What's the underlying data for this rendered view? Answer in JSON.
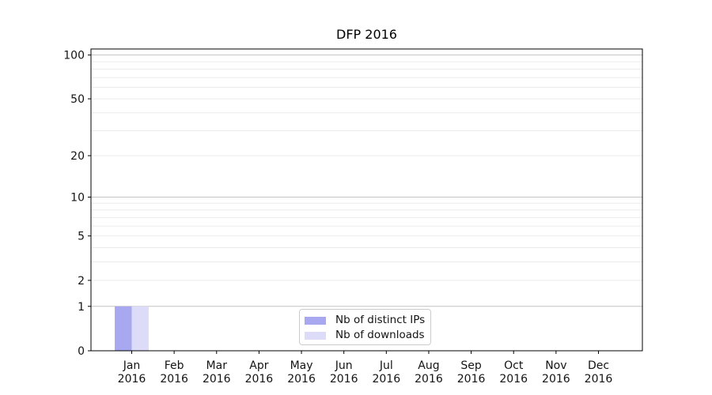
{
  "chart_data": {
    "type": "bar",
    "title": "DFP 2016",
    "categories": [
      "Jan",
      "Feb",
      "Mar",
      "Apr",
      "May",
      "Jun",
      "Jul",
      "Aug",
      "Sep",
      "Oct",
      "Nov",
      "Dec"
    ],
    "category_year": "2016",
    "series": [
      {
        "name": "Nb of distinct IPs",
        "color": "#a8a8f0",
        "values": [
          1,
          0,
          0,
          0,
          0,
          0,
          0,
          0,
          0,
          0,
          0,
          0
        ]
      },
      {
        "name": "Nb of downloads",
        "color": "#dcdcf8",
        "values": [
          1,
          0,
          0,
          0,
          0,
          0,
          0,
          0,
          0,
          0,
          0,
          0
        ]
      }
    ],
    "xlabel": "",
    "ylabel": "",
    "y_scale": "log1p",
    "y_tick_values": [
      0,
      1,
      2,
      5,
      10,
      20,
      50,
      100
    ],
    "y_grid_major": [
      1,
      10,
      100
    ],
    "y_grid_minor": [
      2,
      3,
      4,
      5,
      6,
      7,
      8,
      9,
      20,
      30,
      40,
      50,
      60,
      70,
      80,
      90
    ],
    "ylim": [
      0,
      110
    ],
    "grid": "horizontal",
    "legend_position": "lower center"
  },
  "style": {
    "axis_color": "#000000",
    "text_color": "#141414",
    "grid_major_color": "#c3c3c3",
    "grid_minor_color": "#ebebeb",
    "legend_border_color": "#cccccc",
    "legend_bg": "#ffffff",
    "background": "#ffffff"
  }
}
